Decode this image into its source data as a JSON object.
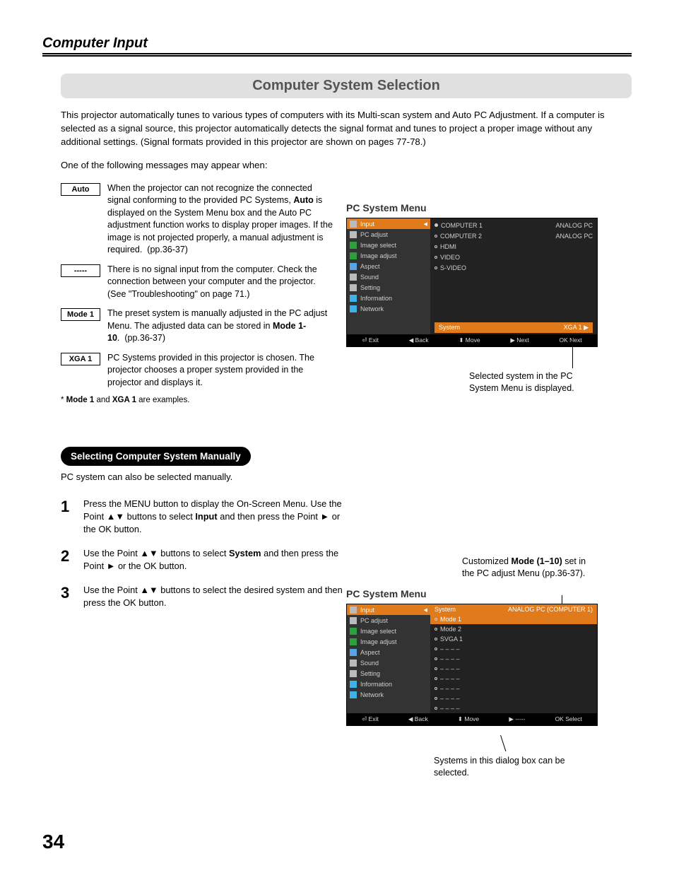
{
  "header": {
    "section": "Computer Input"
  },
  "title": "Computer System Selection",
  "intro1": "This projector automatically tunes to various types of computers with its Multi-scan system and Auto PC Adjustment. If a computer is selected as a signal source, this projector automatically detects the signal format and tunes to project a proper image without any additional settings. (Signal formats provided in this projector are shown on pages 77-78.)",
  "intro2": "One of the following messages may appear when:",
  "messages": {
    "auto_label": "Auto",
    "auto_text": "When the projector can not recognize the connected signal conforming to the provided PC Systems, Auto is displayed on the System Menu box and the Auto PC adjustment function works to display proper images. If the image is not projected properly, a manual adjustment is required.   (pp.36-37)",
    "dashes_label": "-----",
    "dashes_text": "There is no signal input from the computer. Check the connection between your computer and the projector. (See \"Troubleshooting\" on page 71.)",
    "mode1_label": "Mode 1",
    "mode1_text": "The preset system is manually adjusted in the PC adjust Menu. The adjusted data can be stored in Mode 1-10.  (pp.36-37)",
    "xga1_label": "XGA 1",
    "xga1_text": "PC Systems provided in this projector is chosen. The projector chooses a proper system provided in the projector and displays it."
  },
  "footnote": "* Mode 1 and XGA 1 are examples.",
  "manual": {
    "heading": "Selecting Computer System Manually",
    "intro": "PC system can also be selected manually.",
    "steps": {
      "s1n": "1",
      "s1": "Press the MENU button to display the On-Screen Menu. Use the Point ▲▼ buttons to select Input and then press the Point ► or the OK button.",
      "s2n": "2",
      "s2": "Use the Point ▲▼ buttons to select System and then press the Point ► or the OK button.",
      "s3n": "3",
      "s3": "Use the Point ▲▼ buttons to select the desired system and then press the OK button."
    }
  },
  "menu_common": {
    "label": "PC System Menu",
    "side": [
      "Input",
      "PC adjust",
      "Image select",
      "Image adjust",
      "Aspect",
      "Sound",
      "Setting",
      "Information",
      "Network"
    ],
    "side_icon_colors": [
      "#bbbbbb",
      "#bbbbbb",
      "#2aa13a",
      "#2aa13a",
      "#5aa3e6",
      "#bbbbbb",
      "#bbbbbb",
      "#41b0e8",
      "#41b0e8"
    ],
    "bottom": [
      "⏎ Exit",
      "◀ Back",
      "⬍ Move",
      "▶ Next",
      "OK  Next"
    ],
    "bottom2": [
      "⏎ Exit",
      "◀ Back",
      "⬍ Move",
      "▶ -----",
      "OK  Select"
    ]
  },
  "menu1": {
    "items": [
      {
        "bullet": "solid",
        "l": "COMPUTER 1",
        "r": "ANALOG PC"
      },
      {
        "bullet": "open",
        "l": "COMPUTER 2",
        "r": "ANALOG PC"
      },
      {
        "bullet": "open",
        "l": "HDMI",
        "r": ""
      },
      {
        "bullet": "open",
        "l": "VIDEO",
        "r": ""
      },
      {
        "bullet": "open",
        "l": "S-VIDEO",
        "r": ""
      }
    ],
    "sysbar_l": "System",
    "sysbar_r": "XGA 1  ▶",
    "caption": "Selected system in the PC System Menu is displayed."
  },
  "menu2": {
    "top_l": "System",
    "top_r": "ANALOG PC (COMPUTER 1)",
    "modes": [
      "Mode 1",
      "Mode 2",
      "SVGA 1",
      "– – – –",
      "– – – –",
      "– – – –",
      "– – – –",
      "– – – –",
      "– – – –",
      "– – – –"
    ],
    "selected": 0,
    "caption_top": "Customized Mode (1–10) set in the PC adjust Menu (pp.36-37).",
    "caption_bottom": "Systems in this dialog box can be selected."
  },
  "page": "34"
}
